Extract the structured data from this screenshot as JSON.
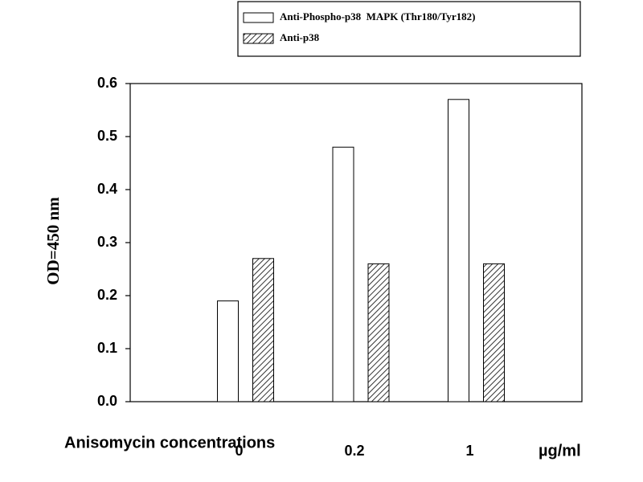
{
  "chart_data": {
    "type": "bar",
    "y_label": "OD=450 nm",
    "x_label": "Anisomycin concentrations",
    "x_unit": "µg/ml",
    "categories": [
      "0",
      "0.2",
      "1"
    ],
    "series": [
      {
        "name": "Anti-Phospho-p38  MAPK (Thr180/Tyr182)",
        "color": "#ffffff",
        "hatch": false,
        "values": [
          0.19,
          0.48,
          0.57
        ]
      },
      {
        "name": "Anti-p38",
        "color": "#ffffff",
        "hatch": true,
        "values": [
          0.27,
          0.26,
          0.26
        ]
      }
    ],
    "ylim": [
      0,
      0.6
    ],
    "yticks": [
      {
        "value": 0,
        "label": "0.0"
      },
      0.1,
      0.2,
      0.3,
      0.4,
      0.5,
      0.6
    ],
    "grid": false
  }
}
